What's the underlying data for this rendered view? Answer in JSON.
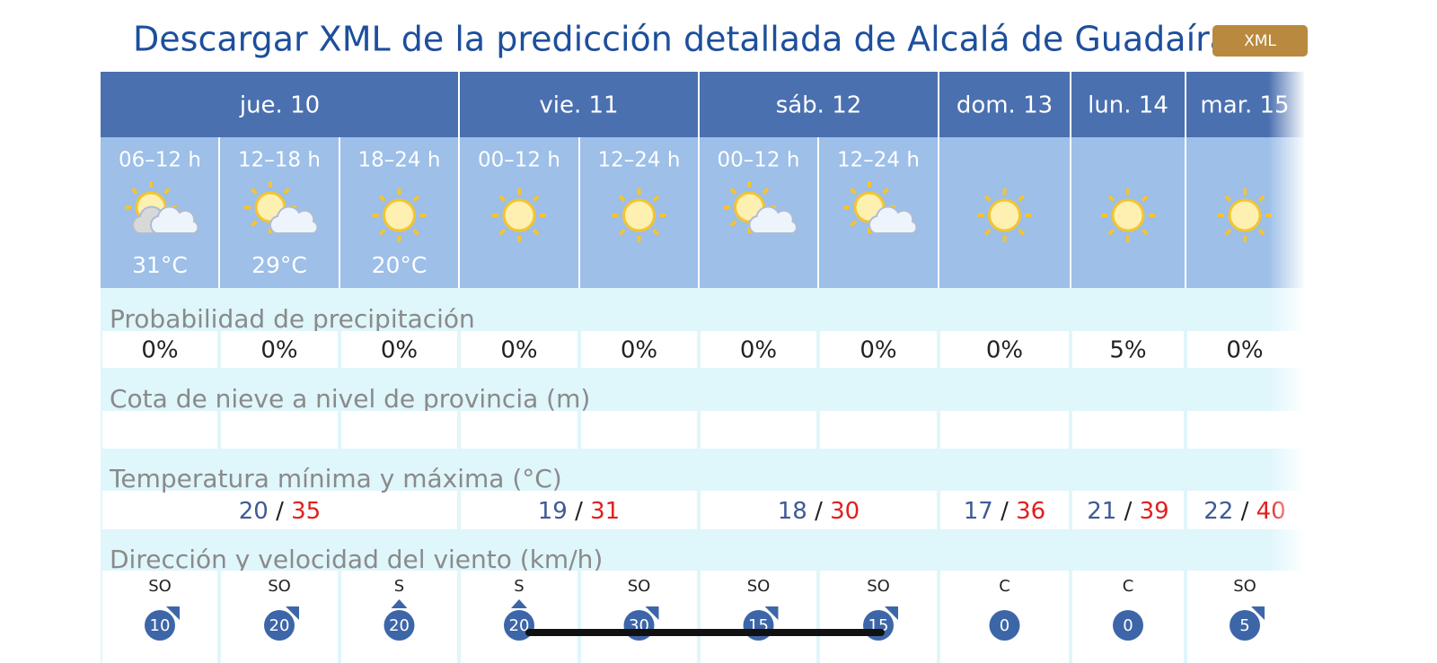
{
  "header": {
    "title": "Descargar XML de la predicción detallada de Alcalá de Guadaíra",
    "button": "XML"
  },
  "days": [
    {
      "label": "jue. 10",
      "periods": 3,
      "min": 20,
      "max": 35
    },
    {
      "label": "vie. 11",
      "periods": 2,
      "min": 19,
      "max": 31
    },
    {
      "label": "sáb. 12",
      "periods": 2,
      "min": 18,
      "max": 30
    },
    {
      "label": "dom. 13",
      "periods": 1,
      "min": 17,
      "max": 36
    },
    {
      "label": "lun. 14",
      "periods": 1,
      "min": 21,
      "max": 39
    },
    {
      "label": "mar. 15",
      "periods": 1,
      "min": 22,
      "max": 40
    }
  ],
  "separator": "/",
  "columns": [
    {
      "period": "06–12 h",
      "icon": "sun-cloud-dark",
      "temp": "31°C",
      "precip": "0%",
      "wind_dir": "SO",
      "wind_speed": 10
    },
    {
      "period": "12–18 h",
      "icon": "sun-cloud",
      "temp": "29°C",
      "precip": "0%",
      "wind_dir": "SO",
      "wind_speed": 20
    },
    {
      "period": "18–24 h",
      "icon": "sun",
      "temp": "20°C",
      "precip": "0%",
      "wind_dir": "S",
      "wind_speed": 20
    },
    {
      "period": "00–12 h",
      "icon": "sun",
      "precip": "0%",
      "wind_dir": "S",
      "wind_speed": 20
    },
    {
      "period": "12–24 h",
      "icon": "sun",
      "precip": "0%",
      "wind_dir": "SO",
      "wind_speed": 30
    },
    {
      "period": "00–12 h",
      "icon": "sun-cloud",
      "precip": "0%",
      "wind_dir": "SO",
      "wind_speed": 15
    },
    {
      "period": "12–24 h",
      "icon": "sun-cloud",
      "precip": "0%",
      "wind_dir": "SO",
      "wind_speed": 15
    },
    {
      "icon": "sun",
      "precip": "0%",
      "wind_dir": "C",
      "wind_speed": 0
    },
    {
      "icon": "sun",
      "precip": "5%",
      "wind_dir": "C",
      "wind_speed": 0
    },
    {
      "icon": "sun",
      "precip": "0%",
      "wind_dir": "SO",
      "wind_speed": 5
    }
  ],
  "sections": {
    "precip": "Probabilidad de precipitación",
    "snow": "Cota de nieve a nivel de provincia (m)",
    "temp": "Temperatura mínima y máxima (°C)",
    "wind": "Dirección y velocidad del viento (km/h)"
  }
}
